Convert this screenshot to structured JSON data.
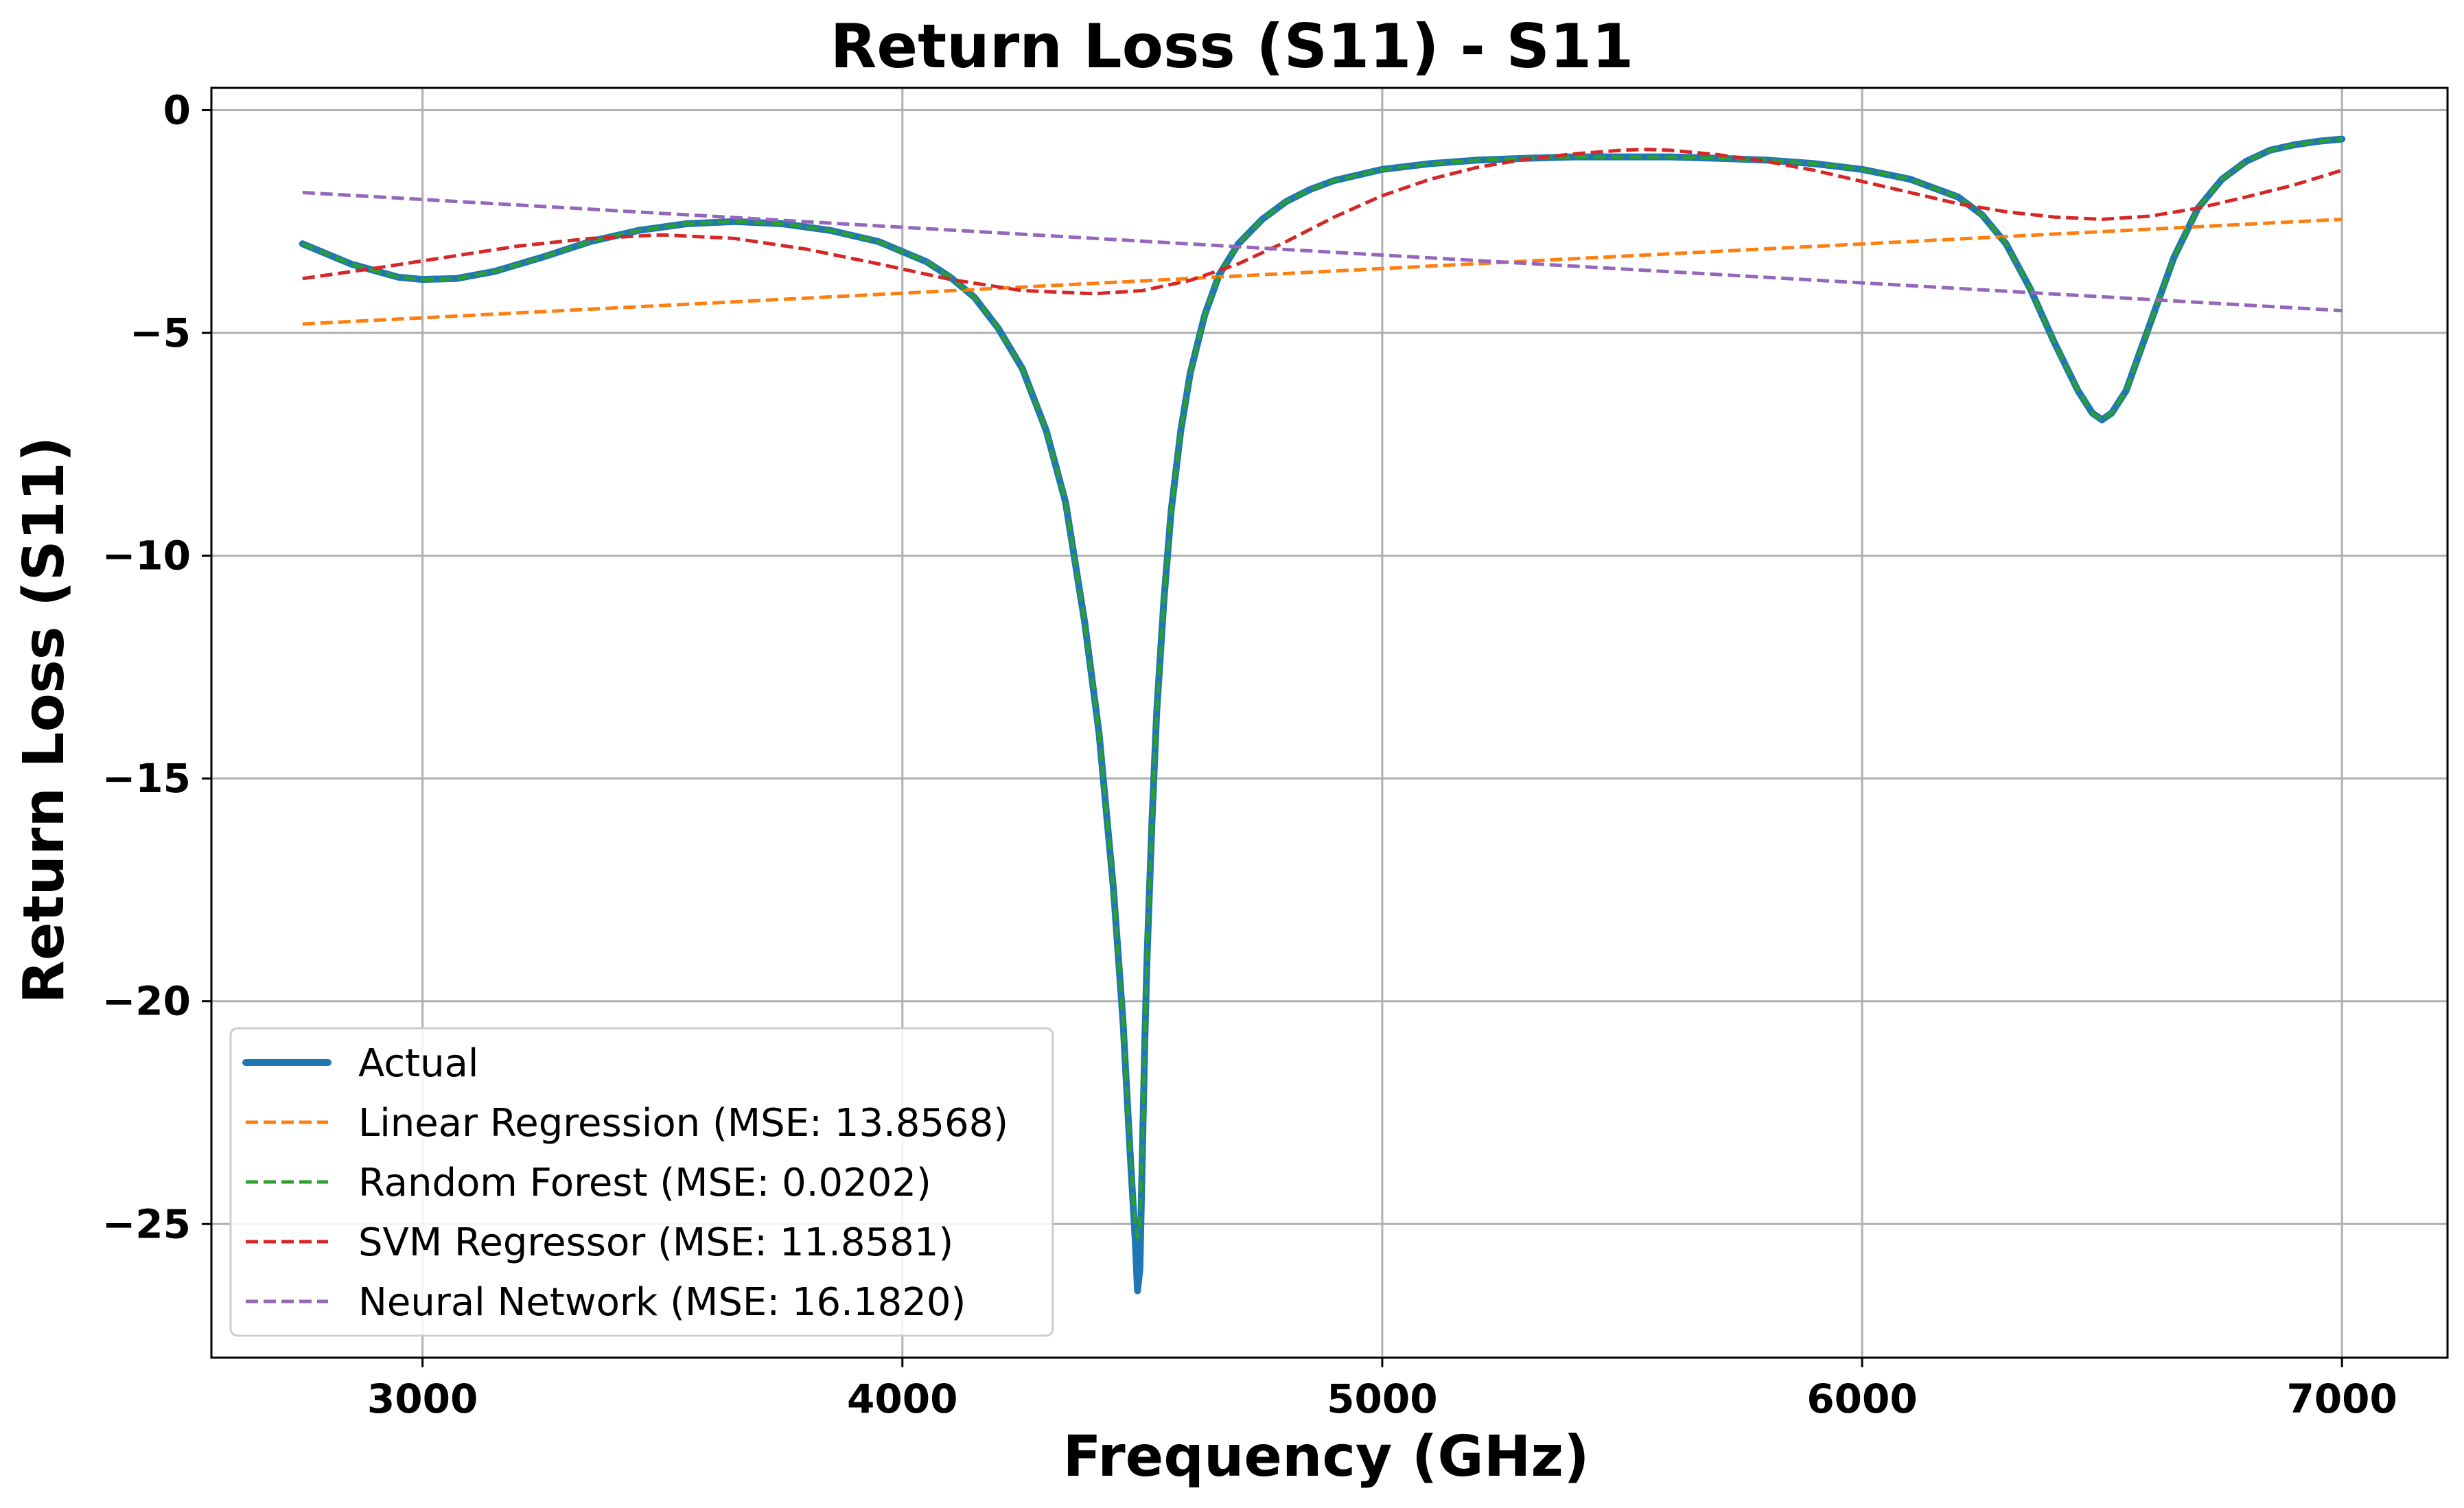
{
  "chart_data": {
    "type": "line",
    "title": "Return Loss (S11) - S11",
    "xlabel": "Frequency (GHz)",
    "ylabel": "Return Loss (S11)",
    "xlim": [
      2560,
      7220
    ],
    "ylim": [
      -28,
      0.5
    ],
    "xticks": [
      3000,
      4000,
      5000,
      6000,
      7000
    ],
    "xtick_labels": [
      "3000",
      "4000",
      "5000",
      "6000",
      "7000"
    ],
    "yticks": [
      0,
      -5,
      -10,
      -15,
      -20,
      -25
    ],
    "ytick_labels": [
      "0",
      "−5",
      "−10",
      "−15",
      "−20",
      "−25"
    ],
    "grid": true,
    "legend_position": "lower-left",
    "series": [
      {
        "name": "Actual",
        "color": "#1f77b4",
        "style": "solid",
        "x": [
          2750,
          2850,
          2950,
          3000,
          3070,
          3150,
          3250,
          3350,
          3450,
          3550,
          3650,
          3750,
          3850,
          3950,
          4050,
          4100,
          4150,
          4200,
          4250,
          4300,
          4340,
          4380,
          4410,
          4440,
          4460,
          4475,
          4485,
          4490,
          4495,
          4500,
          4505,
          4510,
          4520,
          4530,
          4545,
          4560,
          4580,
          4600,
          4630,
          4660,
          4700,
          4750,
          4800,
          4850,
          4900,
          5000,
          5100,
          5200,
          5300,
          5400,
          5500,
          5600,
          5700,
          5800,
          5900,
          6000,
          6100,
          6200,
          6250,
          6300,
          6350,
          6400,
          6450,
          6480,
          6500,
          6520,
          6550,
          6600,
          6650,
          6700,
          6750,
          6800,
          6850,
          6900,
          6950,
          7000
        ],
        "y": [
          -3.0,
          -3.45,
          -3.75,
          -3.8,
          -3.78,
          -3.62,
          -3.3,
          -2.95,
          -2.7,
          -2.55,
          -2.5,
          -2.55,
          -2.7,
          -2.95,
          -3.4,
          -3.75,
          -4.2,
          -4.9,
          -5.8,
          -7.2,
          -8.8,
          -11.5,
          -14.0,
          -17.5,
          -20.5,
          -23.5,
          -25.3,
          -26.5,
          -26.0,
          -23.5,
          -21.0,
          -19.0,
          -16.0,
          -13.5,
          -11.0,
          -9.0,
          -7.2,
          -5.9,
          -4.6,
          -3.7,
          -3.0,
          -2.45,
          -2.05,
          -1.78,
          -1.58,
          -1.33,
          -1.2,
          -1.12,
          -1.08,
          -1.05,
          -1.05,
          -1.05,
          -1.08,
          -1.12,
          -1.2,
          -1.33,
          -1.55,
          -1.95,
          -2.35,
          -3.0,
          -4.0,
          -5.2,
          -6.3,
          -6.8,
          -6.95,
          -6.8,
          -6.3,
          -4.8,
          -3.3,
          -2.2,
          -1.55,
          -1.15,
          -0.9,
          -0.78,
          -0.7,
          -0.65
        ]
      },
      {
        "name": "Linear Regression (MSE: 13.8568)",
        "color": "#ff7f0e",
        "style": "dashed",
        "x": [
          2750,
          7000
        ],
        "y": [
          -4.8,
          -2.45
        ]
      },
      {
        "name": "Random Forest (MSE: 0.0202)",
        "color": "#2ca02c",
        "style": "dashed",
        "x": [
          2750,
          2850,
          2950,
          3000,
          3070,
          3150,
          3250,
          3350,
          3450,
          3550,
          3650,
          3750,
          3850,
          3950,
          4050,
          4100,
          4150,
          4200,
          4250,
          4300,
          4340,
          4380,
          4410,
          4440,
          4460,
          4475,
          4485,
          4490,
          4495,
          4500,
          4505,
          4510,
          4520,
          4530,
          4545,
          4560,
          4580,
          4600,
          4630,
          4660,
          4700,
          4750,
          4800,
          4850,
          4900,
          5000,
          5100,
          5200,
          5300,
          5400,
          5500,
          5600,
          5700,
          5800,
          5900,
          6000,
          6100,
          6200,
          6250,
          6300,
          6350,
          6400,
          6450,
          6480,
          6500,
          6520,
          6550,
          6600,
          6650,
          6700,
          6750,
          6800,
          6850,
          6900,
          6950,
          7000
        ],
        "y": [
          -3.0,
          -3.45,
          -3.75,
          -3.8,
          -3.78,
          -3.62,
          -3.3,
          -2.95,
          -2.7,
          -2.55,
          -2.5,
          -2.55,
          -2.7,
          -2.95,
          -3.4,
          -3.75,
          -4.2,
          -4.9,
          -5.8,
          -7.2,
          -8.8,
          -11.5,
          -14.0,
          -17.5,
          -20.5,
          -23.5,
          -25.0,
          -25.3,
          -25.0,
          -23.3,
          -21.0,
          -19.0,
          -16.0,
          -13.5,
          -11.0,
          -9.0,
          -7.2,
          -5.9,
          -4.6,
          -3.7,
          -3.0,
          -2.45,
          -2.05,
          -1.78,
          -1.58,
          -1.33,
          -1.2,
          -1.12,
          -1.08,
          -1.05,
          -1.05,
          -1.05,
          -1.08,
          -1.12,
          -1.2,
          -1.33,
          -1.55,
          -1.95,
          -2.35,
          -3.0,
          -4.0,
          -5.2,
          -6.3,
          -6.8,
          -6.95,
          -6.8,
          -6.3,
          -4.8,
          -3.3,
          -2.2,
          -1.55,
          -1.15,
          -0.9,
          -0.78,
          -0.7,
          -0.65
        ]
      },
      {
        "name": "SVM Regressor (MSE: 11.8581)",
        "color": "#d62728",
        "style": "dashed",
        "x": [
          2750,
          2900,
          3050,
          3200,
          3350,
          3500,
          3650,
          3800,
          3950,
          4100,
          4250,
          4400,
          4500,
          4600,
          4700,
          4800,
          4900,
          5000,
          5100,
          5200,
          5300,
          5400,
          5500,
          5550,
          5600,
          5700,
          5800,
          5900,
          6000,
          6100,
          6200,
          6300,
          6400,
          6500,
          6600,
          6700,
          6800,
          6900,
          7000
        ],
        "y": [
          -3.78,
          -3.55,
          -3.3,
          -3.05,
          -2.88,
          -2.8,
          -2.88,
          -3.12,
          -3.45,
          -3.8,
          -4.05,
          -4.12,
          -4.05,
          -3.82,
          -3.45,
          -2.95,
          -2.4,
          -1.92,
          -1.55,
          -1.28,
          -1.1,
          -0.98,
          -0.9,
          -0.88,
          -0.9,
          -1.0,
          -1.15,
          -1.35,
          -1.6,
          -1.85,
          -2.1,
          -2.28,
          -2.4,
          -2.45,
          -2.38,
          -2.2,
          -1.95,
          -1.68,
          -1.35
        ]
      },
      {
        "name": "Neural Network (MSE: 16.1820)",
        "color": "#9467bd",
        "style": "dashed",
        "x": [
          2750,
          7000
        ],
        "y": [
          -1.85,
          -4.5
        ]
      }
    ]
  }
}
